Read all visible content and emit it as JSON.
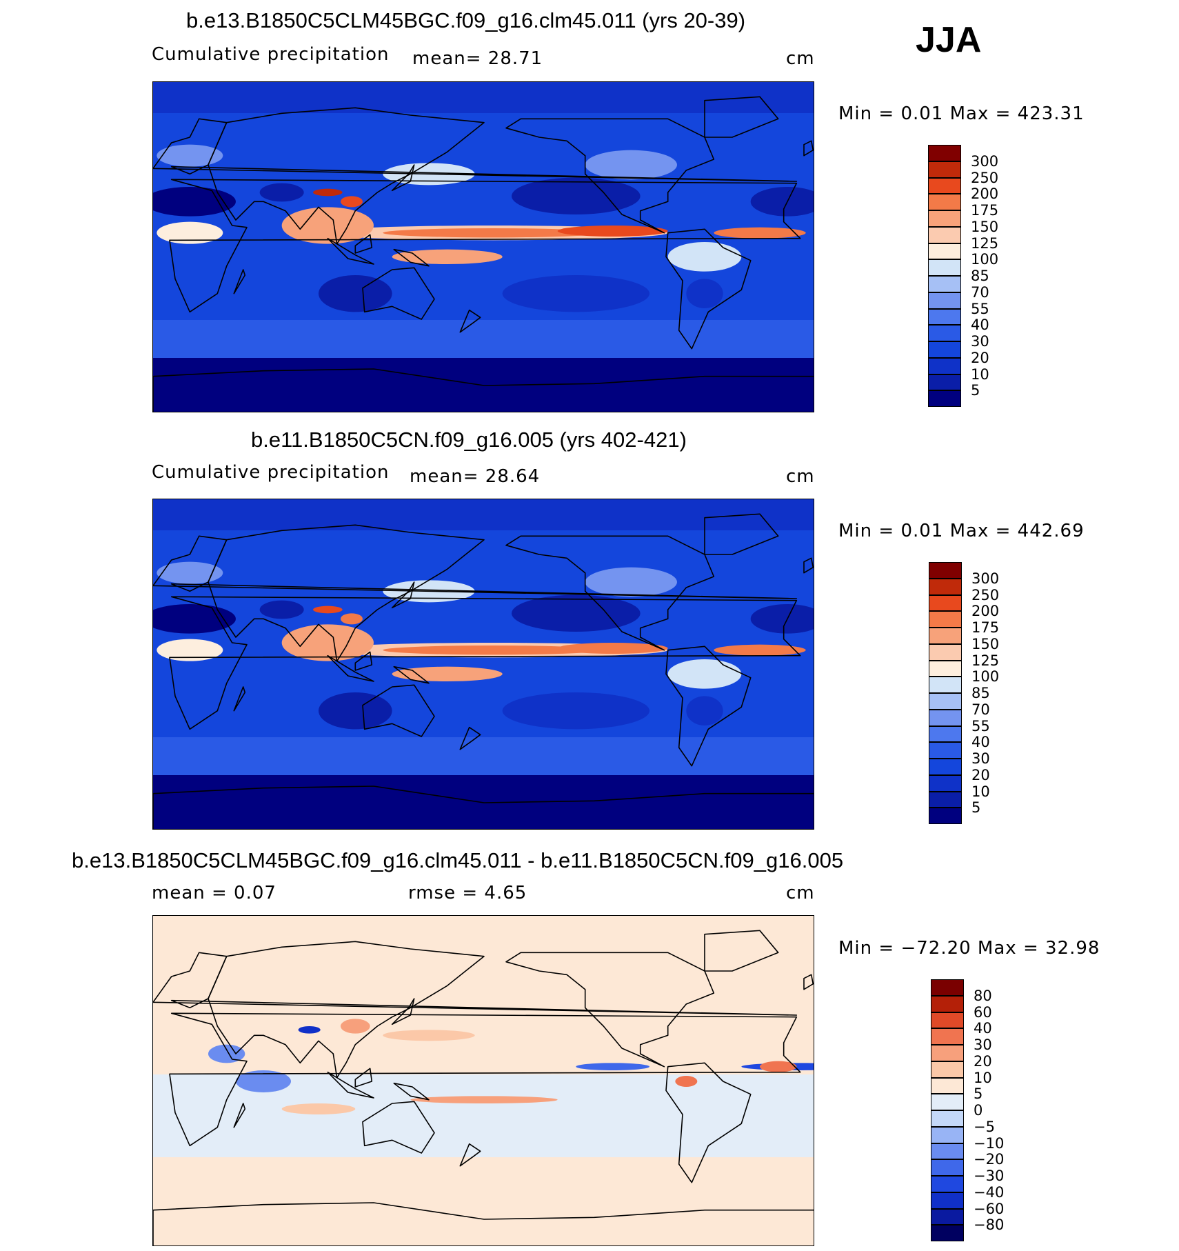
{
  "season": "JJA",
  "panels": [
    {
      "title": "b.e13.B1850C5CLM45BGC.f09_g16.clm45.011 (yrs 20-39)",
      "left_label": "Cumulative  precipitation",
      "center_label": "mean=   28.71",
      "units": "cm",
      "minmax": "Min  =    0.01  Max  = 423.31",
      "colorbar_labels": [
        "300",
        "250",
        "200",
        "175",
        "150",
        "125",
        "100",
        "85",
        "70",
        "55",
        "40",
        "30",
        "20",
        "10",
        "5"
      ]
    },
    {
      "title": "b.e11.B1850C5CN.f09_g16.005 (yrs 402-421)",
      "left_label": "Cumulative  precipitation",
      "center_label": "mean=   28.64",
      "units": "cm",
      "minmax": "Min  =    0.01  Max  = 442.69",
      "colorbar_labels": [
        "300",
        "250",
        "200",
        "175",
        "150",
        "125",
        "100",
        "85",
        "70",
        "55",
        "40",
        "30",
        "20",
        "10",
        "5"
      ]
    },
    {
      "title": "b.e13.B1850C5CLM45BGC.f09_g16.clm45.011 - b.e11.B1850C5CN.f09_g16.005",
      "left_label": "mean  =     0.07",
      "center_label": "rmse  =     4.65",
      "units": "cm",
      "minmax": "Min  = −72.20  Max  =    32.98",
      "colorbar_labels": [
        "80",
        "60",
        "40",
        "30",
        "20",
        "10",
        "5",
        "0",
        "−5",
        "−10",
        "−20",
        "−30",
        "−40",
        "−60",
        "−80"
      ]
    }
  ],
  "chart_data": [
    {
      "type": "heatmap",
      "title": "b.e13.B1850C5CLM45BGC.f09_g16.clm45.011 (yrs 20-39)",
      "variable": "Cumulative precipitation",
      "units": "cm",
      "mean": 28.71,
      "min": 0.01,
      "max": 423.31,
      "contour_levels": [
        5,
        10,
        20,
        30,
        40,
        55,
        70,
        85,
        100,
        125,
        150,
        175,
        200,
        250,
        300
      ],
      "colors": [
        "#00007f",
        "#0a1ea8",
        "#0f32c8",
        "#1446dc",
        "#2a5ae6",
        "#4d78ee",
        "#7494f0",
        "#a6c0f5",
        "#d2e4f7",
        "#fdeede",
        "#fbcbb0",
        "#f7a27a",
        "#f37a48",
        "#e8491e",
        "#c02a0a",
        "#800000"
      ],
      "projection": "cylindrical equidistant, 0 to 360 longitude, -90 to 90 latitude"
    },
    {
      "type": "heatmap",
      "title": "b.e11.B1850C5CN.f09_g16.005 (yrs 402-421)",
      "variable": "Cumulative precipitation",
      "units": "cm",
      "mean": 28.64,
      "min": 0.01,
      "max": 442.69,
      "contour_levels": [
        5,
        10,
        20,
        30,
        40,
        55,
        70,
        85,
        100,
        125,
        150,
        175,
        200,
        250,
        300
      ],
      "colors": [
        "#00007f",
        "#0a1ea8",
        "#0f32c8",
        "#1446dc",
        "#2a5ae6",
        "#4d78ee",
        "#7494f0",
        "#a6c0f5",
        "#d2e4f7",
        "#fdeede",
        "#fbcbb0",
        "#f7a27a",
        "#f37a48",
        "#e8491e",
        "#c02a0a",
        "#800000"
      ],
      "projection": "cylindrical equidistant, 0 to 360 longitude, -90 to 90 latitude"
    },
    {
      "type": "heatmap",
      "title": "b.e13.B1850C5CLM45BGC.f09_g16.clm45.011 - b.e11.B1850C5CN.f09_g16.005",
      "units": "cm",
      "mean": 0.07,
      "rmse": 4.65,
      "min": -72.2,
      "max": 32.98,
      "contour_levels": [
        -80,
        -60,
        -40,
        -30,
        -20,
        -10,
        -5,
        0,
        5,
        10,
        20,
        30,
        40,
        60,
        80
      ],
      "colors": [
        "#000060",
        "#0a1aa0",
        "#1030c8",
        "#1f48e0",
        "#3f68ea",
        "#6a8cf0",
        "#98b4f5",
        "#c4d8f8",
        "#e3edf8",
        "#fde8d6",
        "#fbc8a8",
        "#f7a07c",
        "#f07450",
        "#e04a28",
        "#b42008",
        "#7a0000"
      ],
      "projection": "cylindrical equidistant, 0 to 360 longitude, -90 to 90 latitude"
    }
  ]
}
